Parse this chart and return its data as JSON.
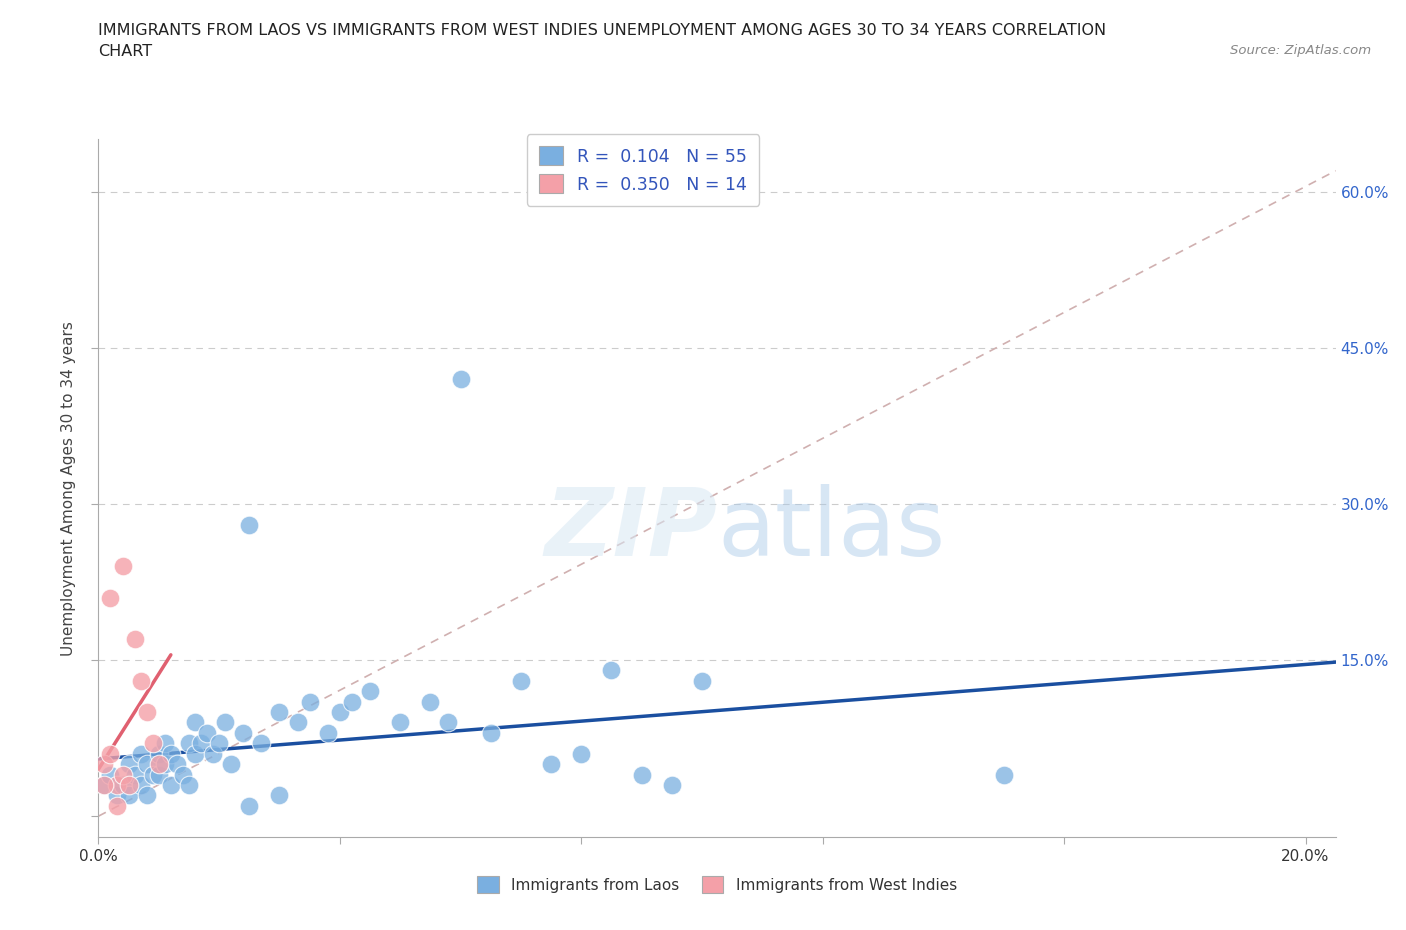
{
  "title_line1": "IMMIGRANTS FROM LAOS VS IMMIGRANTS FROM WEST INDIES UNEMPLOYMENT AMONG AGES 30 TO 34 YEARS CORRELATION",
  "title_line2": "CHART",
  "source": "Source: ZipAtlas.com",
  "ylabel": "Unemployment Among Ages 30 to 34 years",
  "xlim": [
    0.0,
    0.205
  ],
  "ylim": [
    -0.02,
    0.65
  ],
  "x_tick_positions": [
    0.0,
    0.04,
    0.08,
    0.12,
    0.16,
    0.2
  ],
  "x_tick_labels": [
    "0.0%",
    "",
    "",
    "",
    "",
    "20.0%"
  ],
  "y_tick_positions": [
    0.0,
    0.15,
    0.3,
    0.45,
    0.6
  ],
  "y_tick_labels_right": [
    "",
    "15.0%",
    "30.0%",
    "45.0%",
    "60.0%"
  ],
  "legend_laos_label": "R =  0.104   N = 55",
  "legend_wi_label": "R =  0.350   N = 14",
  "bottom_legend_laos": "Immigrants from Laos",
  "bottom_legend_wi": "Immigrants from West Indies",
  "laos_color": "#7aafe0",
  "wi_color": "#f4a0a8",
  "laos_line_color": "#1a4fa0",
  "wi_line_color": "#e06070",
  "diagonal_color": "#d0b0b0",
  "laos_x": [
    0.001,
    0.002,
    0.003,
    0.004,
    0.005,
    0.005,
    0.006,
    0.007,
    0.007,
    0.008,
    0.008,
    0.009,
    0.01,
    0.01,
    0.011,
    0.011,
    0.012,
    0.012,
    0.013,
    0.014,
    0.015,
    0.015,
    0.016,
    0.016,
    0.017,
    0.018,
    0.019,
    0.02,
    0.021,
    0.022,
    0.024,
    0.025,
    0.027,
    0.03,
    0.03,
    0.033,
    0.035,
    0.038,
    0.04,
    0.042,
    0.045,
    0.05,
    0.055,
    0.058,
    0.06,
    0.065,
    0.07,
    0.075,
    0.08,
    0.085,
    0.09,
    0.095,
    0.1,
    0.15,
    0.025
  ],
  "laos_y": [
    0.03,
    0.04,
    0.02,
    0.03,
    0.05,
    0.02,
    0.04,
    0.03,
    0.06,
    0.05,
    0.02,
    0.04,
    0.06,
    0.04,
    0.05,
    0.07,
    0.06,
    0.03,
    0.05,
    0.04,
    0.07,
    0.03,
    0.06,
    0.09,
    0.07,
    0.08,
    0.06,
    0.07,
    0.09,
    0.05,
    0.08,
    0.28,
    0.07,
    0.1,
    0.02,
    0.09,
    0.11,
    0.08,
    0.1,
    0.11,
    0.12,
    0.09,
    0.11,
    0.09,
    0.42,
    0.08,
    0.13,
    0.05,
    0.06,
    0.14,
    0.04,
    0.03,
    0.13,
    0.04,
    0.01
  ],
  "wi_x": [
    0.001,
    0.002,
    0.003,
    0.004,
    0.005,
    0.006,
    0.007,
    0.008,
    0.009,
    0.01,
    0.001,
    0.002,
    0.003,
    0.004
  ],
  "wi_y": [
    0.05,
    0.21,
    0.03,
    0.04,
    0.03,
    0.17,
    0.13,
    0.1,
    0.07,
    0.05,
    0.03,
    0.06,
    0.01,
    0.24
  ],
  "laos_line_x0": 0.0,
  "laos_line_x1": 0.205,
  "laos_line_y0": 0.055,
  "laos_line_y1": 0.148,
  "wi_line_x0": 0.0,
  "wi_line_x1": 0.012,
  "wi_line_y0": 0.045,
  "wi_line_y1": 0.155,
  "title_fontsize": 11.5,
  "axis_label_fontsize": 11,
  "tick_fontsize": 11,
  "legend_fontsize": 12.5
}
